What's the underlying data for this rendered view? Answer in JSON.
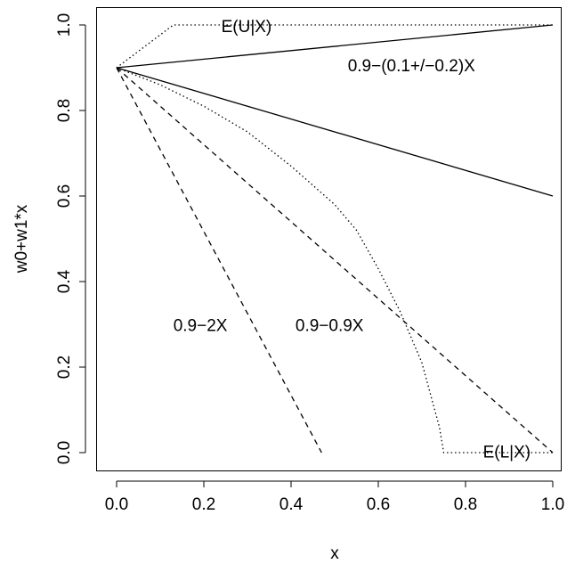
{
  "chart_data": {
    "type": "line",
    "title": "",
    "xlabel": "x",
    "ylabel": "w0+w1*x",
    "xlim": [
      0,
      1
    ],
    "ylim": [
      0,
      1
    ],
    "x_ticks": [
      "0.0",
      "0.2",
      "0.4",
      "0.6",
      "0.8",
      "1.0"
    ],
    "y_ticks": [
      "0.0",
      "0.2",
      "0.4",
      "0.6",
      "0.8",
      "1.0"
    ],
    "grid": false,
    "series": [
      {
        "style": "solid",
        "points": [
          [
            0,
            0.9
          ],
          [
            1,
            1.0
          ]
        ]
      },
      {
        "style": "solid",
        "points": [
          [
            0,
            0.9
          ],
          [
            1,
            0.6
          ]
        ]
      },
      {
        "style": "dashed",
        "points": [
          [
            0,
            0.9
          ],
          [
            0.47,
            0.0
          ]
        ]
      },
      {
        "style": "dashed",
        "points": [
          [
            0,
            0.9
          ],
          [
            1,
            0.0
          ]
        ]
      },
      {
        "style": "dotted",
        "points": [
          [
            0,
            0.9
          ],
          [
            0.13,
            1.0
          ],
          [
            1,
            1.0
          ]
        ]
      },
      {
        "style": "dotted",
        "points": [
          [
            0,
            0.9
          ],
          [
            0.1,
            0.86
          ],
          [
            0.2,
            0.81
          ],
          [
            0.3,
            0.75
          ],
          [
            0.4,
            0.67
          ],
          [
            0.5,
            0.58
          ],
          [
            0.55,
            0.52
          ],
          [
            0.6,
            0.43
          ],
          [
            0.65,
            0.33
          ],
          [
            0.7,
            0.21
          ],
          [
            0.74,
            0.06
          ],
          [
            0.75,
            0.0
          ],
          [
            1,
            0.0
          ]
        ]
      }
    ],
    "annotations": [
      {
        "text": "E(U|X)",
        "x": 0.24,
        "y": 0.995
      },
      {
        "text": "0.9−(0.1+/−0.2)X",
        "x": 0.53,
        "y": 0.903
      },
      {
        "text": "0.9−2X",
        "x": 0.13,
        "y": 0.296
      },
      {
        "text": "0.9−0.9X",
        "x": 0.41,
        "y": 0.296
      },
      {
        "text": "E(L|X)",
        "x": 0.84,
        "y": 0.0
      }
    ]
  }
}
